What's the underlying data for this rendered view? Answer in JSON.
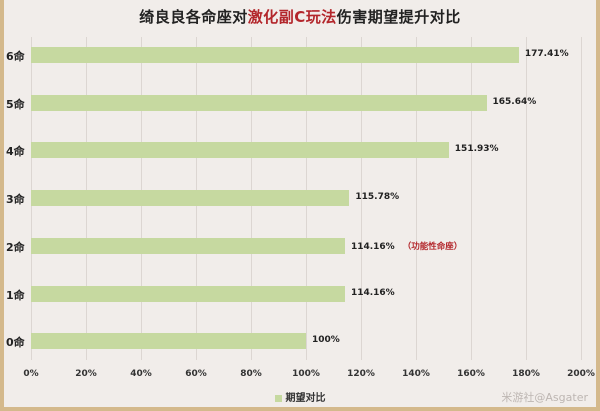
{
  "chart_data": {
    "type": "bar",
    "orientation": "horizontal",
    "title_parts": [
      {
        "text": "绮良良各命座对",
        "highlight": false
      },
      {
        "text": "激化副C玩法",
        "highlight": true
      },
      {
        "text": "伤害期望提升对比",
        "highlight": false
      }
    ],
    "title": "绮良良各命座对激化副C玩法伤害期望提升对比",
    "categories": [
      "6命",
      "5命",
      "4命",
      "3命",
      "2命",
      "1命",
      "0命"
    ],
    "series": [
      {
        "name": "期望对比",
        "values": [
          177.41,
          165.64,
          151.93,
          115.78,
          114.16,
          114.16,
          100
        ]
      }
    ],
    "value_labels": [
      "177.41%",
      "165.64%",
      "151.93%",
      "115.78%",
      "114.16%",
      "114.16%",
      "100%"
    ],
    "annotations": [
      {
        "category": "2命",
        "text": "（功能性命座）",
        "color": "#b3262b"
      }
    ],
    "xlabel": "",
    "ylabel": "",
    "xlim": [
      0,
      200
    ],
    "x_ticks": [
      "0%",
      "20%",
      "40%",
      "60%",
      "80%",
      "100%",
      "120%",
      "140%",
      "160%",
      "180%",
      "200%"
    ],
    "grid": true,
    "legend_position": "bottom",
    "bar_color": "#c6d9a0",
    "highlight_color": "#b3262b"
  },
  "legend": {
    "label": "期望对比"
  },
  "watermark": "米游社@Asgater"
}
